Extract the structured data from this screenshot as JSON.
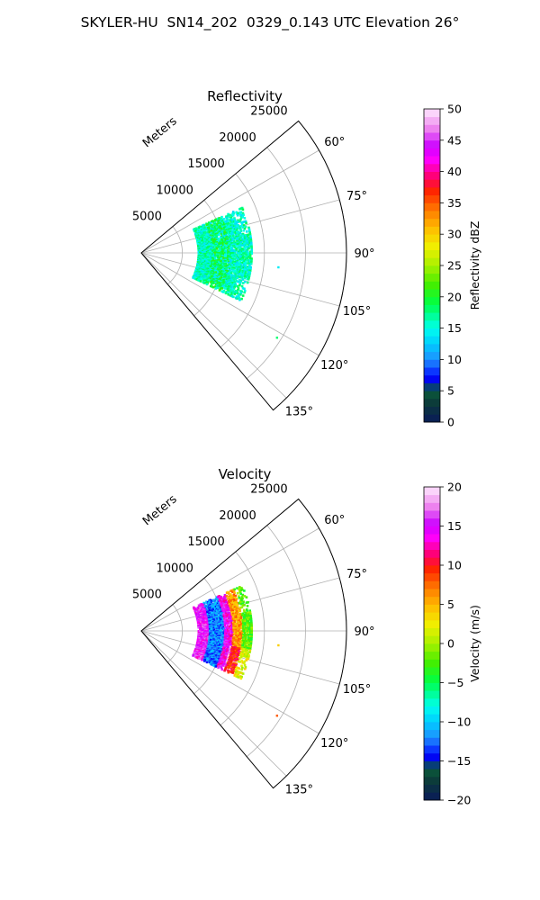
{
  "figure_title": "SKYLER-HU  SN14_202  0329_0.143 UTC Elevation 26°",
  "chart_data": [
    {
      "type": "polar sector (radar PPI)",
      "title": "Reflectivity",
      "radial_axis_label": "Meters",
      "radial_ticks": [
        5000,
        10000,
        15000,
        20000,
        25000
      ],
      "radial_range": [
        0,
        25000
      ],
      "azimuth_range_deg": [
        50,
        140
      ],
      "azimuth_ticks_deg": [
        60,
        75,
        90,
        105,
        120,
        135
      ],
      "azimuth_tick_labels": [
        "60°",
        "75°",
        "90°",
        "105°",
        "120°",
        "135°"
      ],
      "grid": true,
      "data_extent": {
        "range_m": [
          7000,
          13500
        ],
        "azimuth_deg": [
          66,
          116
        ]
      },
      "dominant_values_dBZ": [
        10,
        20
      ],
      "colorbar": {
        "label": "Reflectivity dBZ",
        "range": [
          0,
          50
        ],
        "ticks": [
          0,
          5,
          10,
          15,
          20,
          25,
          30,
          35,
          40,
          45,
          50
        ]
      }
    },
    {
      "type": "polar sector (radar PPI)",
      "title": "Velocity",
      "radial_axis_label": "Meters",
      "radial_ticks": [
        5000,
        10000,
        15000,
        20000,
        25000
      ],
      "radial_range": [
        0,
        25000
      ],
      "azimuth_range_deg": [
        50,
        140
      ],
      "azimuth_ticks_deg": [
        60,
        75,
        90,
        105,
        120,
        135
      ],
      "azimuth_tick_labels": [
        "60°",
        "75°",
        "90°",
        "105°",
        "120°",
        "135°"
      ],
      "grid": true,
      "data_extent": {
        "range_m": [
          7000,
          13500
        ],
        "azimuth_deg": [
          66,
          116
        ]
      },
      "bands_m_per_s": [
        {
          "range_m": [
            7000,
            8200
          ],
          "velocity": 15
        },
        {
          "range_m": [
            8200,
            10200
          ],
          "velocity": -12
        },
        {
          "range_m": [
            10200,
            11200
          ],
          "velocity": 14
        },
        {
          "range_m": [
            11200,
            12400
          ],
          "velocity": 6
        },
        {
          "range_m": [
            12400,
            13500
          ],
          "velocity": -2
        }
      ],
      "colorbar": {
        "label": "Velocity (m/s)",
        "range": [
          -20,
          20
        ],
        "ticks": [
          -20,
          -15,
          -10,
          -5,
          0,
          5,
          10,
          15,
          20
        ]
      }
    }
  ]
}
